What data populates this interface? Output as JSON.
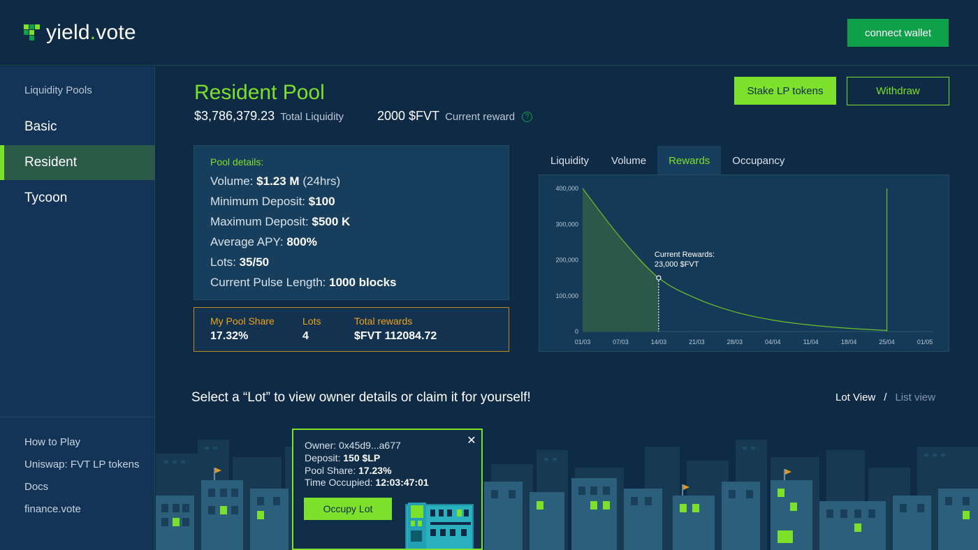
{
  "brand": {
    "name_main": "yield",
    "name_dot": ".",
    "name_end": "vote",
    "accent": "#7de02a"
  },
  "header": {
    "connect_label": "connect wallet"
  },
  "sidebar": {
    "heading": "Liquidity Pools",
    "items": [
      {
        "label": "Basic",
        "active": false
      },
      {
        "label": "Resident",
        "active": true
      },
      {
        "label": "Tycoon",
        "active": false
      }
    ],
    "links": [
      "How to Play",
      "Uniswap: FVT LP tokens",
      "Docs",
      "finance.vote"
    ]
  },
  "pool": {
    "title": "Resident Pool",
    "total_liquidity_value": "$3,786,379.23",
    "total_liquidity_label": "Total Liquidity",
    "reward_value": "2000 $FVT",
    "reward_label": "Current reward",
    "help_glyph": "?",
    "stake_label": "Stake LP tokens",
    "withdraw_label": "Withdraw"
  },
  "details": {
    "heading": "Pool details:",
    "lines": [
      {
        "label": "Volume: ",
        "value": "$1.23 M",
        "suffix": " (24hrs)"
      },
      {
        "label": "Minimum Deposit: ",
        "value": "$100",
        "suffix": ""
      },
      {
        "label": "Maximum Deposit: ",
        "value": "$500 K",
        "suffix": ""
      },
      {
        "label": "Average APY: ",
        "value": "800%",
        "suffix": ""
      },
      {
        "label": "Lots: ",
        "value": "35/50",
        "suffix": ""
      },
      {
        "label": "Current Pulse Length: ",
        "value": "1000 blocks",
        "suffix": ""
      }
    ]
  },
  "share": {
    "pool_share_label": "My Pool Share",
    "pool_share_value": "17.32%",
    "lots_label": "Lots",
    "lots_value": "4",
    "rewards_label": "Total rewards",
    "rewards_value": "$FVT 112084.72"
  },
  "chart_tabs": [
    {
      "label": "Liquidity",
      "active": false
    },
    {
      "label": "Volume",
      "active": false
    },
    {
      "label": "Rewards",
      "active": true
    },
    {
      "label": "Occupancy",
      "active": false
    }
  ],
  "chart_data": {
    "type": "area",
    "title": "",
    "xlabel": "",
    "ylabel": "",
    "x": [
      "01/03",
      "07/03",
      "14/03",
      "21/03",
      "28/03",
      "04/04",
      "11/04",
      "18/04",
      "25/04",
      "01/05"
    ],
    "y_ticks": [
      "0",
      "100,000",
      "200,000",
      "300,000",
      "400,000"
    ],
    "ylim": [
      0,
      400000
    ],
    "series": [
      {
        "values": [
          400000,
          262000,
          150000,
          92000,
          55000,
          32000,
          18000,
          9000,
          3000,
          0
        ]
      }
    ],
    "marker": {
      "x": "14/03",
      "y": 150000,
      "label_line1": "Current Rewards:",
      "label_line2": "23,000 $FVT"
    },
    "shaded_until": "14/03",
    "end_line_x": "25/04",
    "grid": false
  },
  "lots": {
    "prompt": "Select a “Lot” to view owner details or claim it for yourself!",
    "lot_view_label": "Lot View",
    "separator": "/",
    "list_view_label": "List view"
  },
  "popup": {
    "owner_label": "Owner:  ",
    "owner_value": "0x45d9...a677",
    "deposit_label": "Deposit: ",
    "deposit_value": "150 $LP",
    "share_label": "Pool Share: ",
    "share_value": "17.23%",
    "time_label": "Time Occupied: ",
    "time_value": "12:03:47:01",
    "close_glyph": "✕",
    "occupy_label": "Occupy Lot"
  }
}
